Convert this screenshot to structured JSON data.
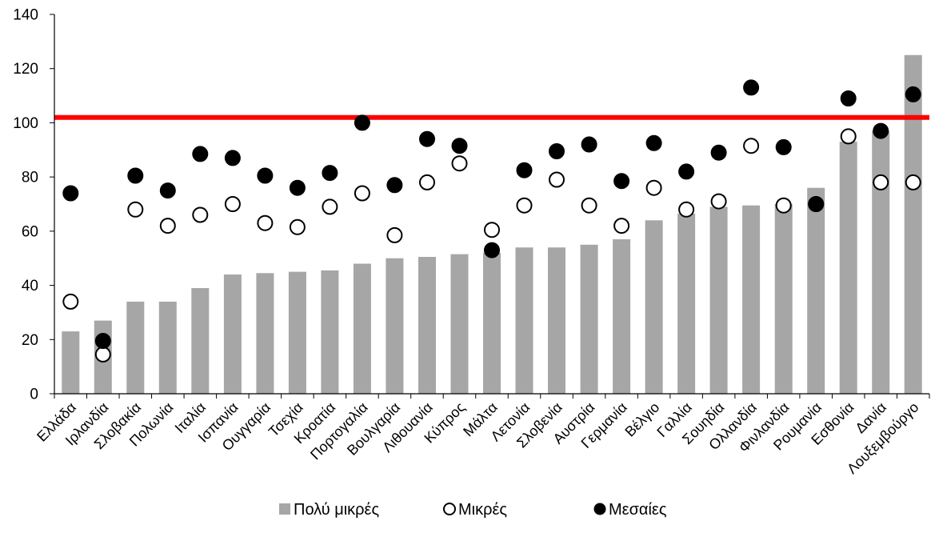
{
  "chart_data": {
    "type": "bar",
    "categories": [
      "Ελλάδα",
      "Ιρλανδία",
      "Σλοβακία",
      "Πολωνία",
      "Ιταλία",
      "Ισπανία",
      "Ουγγαρία",
      "Τσεχία",
      "Κροατία",
      "Πορτογαλία",
      "Βουλγαρία",
      "Λιθουανία",
      "Κύπρος",
      "Μάλτα",
      "Λετονία",
      "Σλοβενία",
      "Αυστρία",
      "Γερμανία",
      "Βέλγιο",
      "Γαλλία",
      "Σουηδία",
      "Ολλανδία",
      "Φινλανδία",
      "Ρουμανία",
      "Εσθονία",
      "Δανία",
      "Λουξεμβούργο"
    ],
    "series": [
      {
        "name": "Πολύ μικρές",
        "kind": "bar",
        "color": "#a6a6a6",
        "values": [
          23,
          27,
          34,
          34,
          39,
          44,
          44.5,
          45,
          45.5,
          48,
          50,
          50.5,
          51.5,
          52,
          54,
          54,
          55,
          57,
          64,
          66.5,
          69,
          69.5,
          70,
          76,
          93,
          97,
          125
        ]
      },
      {
        "name": "Μικρές",
        "kind": "marker-open",
        "color": "#000000",
        "values": [
          34,
          14.5,
          68,
          62,
          66,
          70,
          63,
          61.5,
          69,
          74,
          58.5,
          78,
          85,
          60.5,
          69.5,
          79,
          69.5,
          62,
          76,
          68,
          71,
          91.5,
          69.5,
          70,
          95,
          78,
          78
        ]
      },
      {
        "name": "Μεσαίες",
        "kind": "marker-filled",
        "color": "#000000",
        "values": [
          74,
          19.5,
          80.5,
          75,
          88.5,
          87,
          80.5,
          76,
          81.5,
          100,
          77,
          94,
          91.5,
          53,
          82.5,
          89.5,
          92,
          78.5,
          92.5,
          82,
          89,
          113,
          91,
          70,
          109,
          97,
          110.5
        ]
      }
    ],
    "reference_line": {
      "value": 102,
      "color": "#ff0000"
    },
    "ylim": [
      0,
      140
    ],
    "yticks": [
      "0",
      "20",
      "40",
      "60",
      "80",
      "100",
      "120",
      "140"
    ],
    "xlabel": "",
    "ylabel": "",
    "legend_position": "bottom",
    "grid": false
  }
}
